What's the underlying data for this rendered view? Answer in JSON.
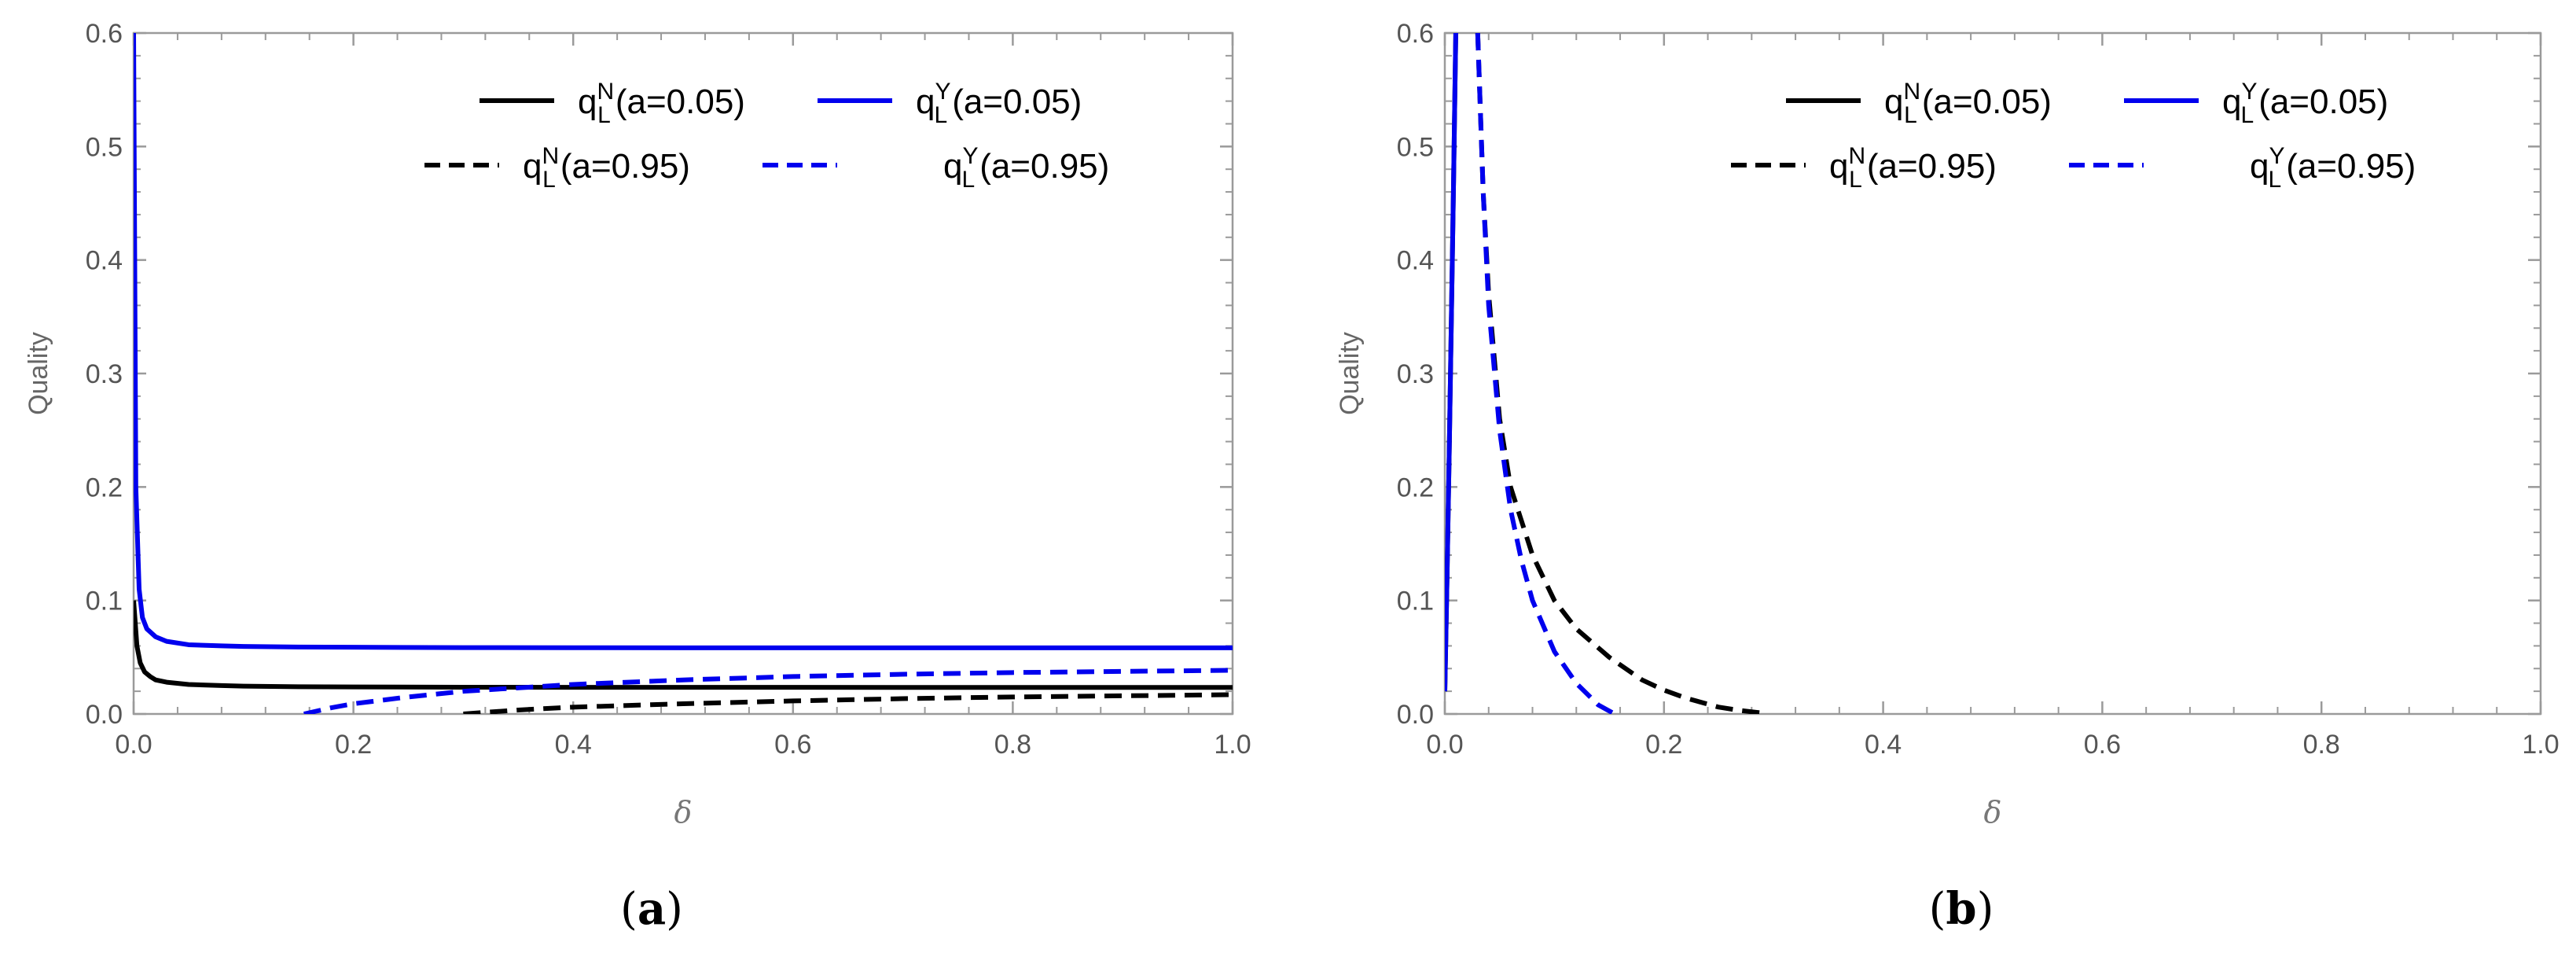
{
  "chart_data": [
    {
      "panel_label": "(a)",
      "type": "line",
      "xlabel": "δ",
      "ylabel": "Quality",
      "xlim": [
        0.0,
        1.0
      ],
      "ylim": [
        0.0,
        0.6
      ],
      "xticks": [
        "0.0",
        "0.2",
        "0.4",
        "0.6",
        "0.8",
        "1.0"
      ],
      "yticks": [
        "0.0",
        "0.1",
        "0.2",
        "0.3",
        "0.4",
        "0.5",
        "0.6"
      ],
      "legend_position": "top-right",
      "series": [
        {
          "name": "q_L^N(a=0.05)",
          "base": "q",
          "sub": "L",
          "sup": "N",
          "param": "(a=0.05)",
          "color": "#000000",
          "dash": "solid",
          "x": [
            0.0,
            0.003,
            0.006,
            0.01,
            0.015,
            0.02,
            0.03,
            0.05,
            0.08,
            0.1,
            0.15,
            0.2,
            0.3,
            0.4,
            0.5,
            0.6,
            0.7,
            0.8,
            0.9,
            1.0
          ],
          "y": [
            0.1,
            0.06,
            0.045,
            0.037,
            0.033,
            0.03,
            0.028,
            0.026,
            0.025,
            0.0245,
            0.024,
            0.0238,
            0.0236,
            0.0235,
            0.0235,
            0.0235,
            0.0234,
            0.0234,
            0.0234,
            0.0234
          ]
        },
        {
          "name": "q_L^Y(a=0.05)",
          "base": "q",
          "sub": "L",
          "sup": "Y",
          "param": "(a=0.05)",
          "color": "#0000ee",
          "dash": "solid",
          "x": [
            0.0,
            0.002,
            0.005,
            0.008,
            0.012,
            0.02,
            0.03,
            0.05,
            0.08,
            0.1,
            0.15,
            0.2,
            0.3,
            0.4,
            0.5,
            0.6,
            0.7,
            0.8,
            0.9,
            1.0
          ],
          "y": [
            0.6,
            0.2,
            0.11,
            0.085,
            0.075,
            0.068,
            0.064,
            0.061,
            0.06,
            0.0595,
            0.059,
            0.0588,
            0.0585,
            0.0584,
            0.0583,
            0.0583,
            0.0583,
            0.0583,
            0.0583,
            0.0583
          ]
        },
        {
          "name": "q_L^N(a=0.95)",
          "base": "q",
          "sub": "L",
          "sup": "N",
          "param": "(a=0.95)",
          "color": "#000000",
          "dash": "dashed",
          "x": [
            0.3,
            0.35,
            0.4,
            0.5,
            0.6,
            0.7,
            0.8,
            0.9,
            1.0
          ],
          "y": [
            0.0,
            0.0035,
            0.006,
            0.009,
            0.0115,
            0.0135,
            0.015,
            0.016,
            0.017
          ]
        },
        {
          "name": "q_L^Y(a=0.95)",
          "base": "q",
          "sub": "L",
          "sup": "Y",
          "param": "(a=0.95)",
          "color": "#0000ee",
          "dash": "dashed",
          "x": [
            0.155,
            0.18,
            0.2,
            0.25,
            0.3,
            0.4,
            0.5,
            0.6,
            0.7,
            0.8,
            0.9,
            1.0
          ],
          "y": [
            0.0,
            0.0055,
            0.009,
            0.015,
            0.02,
            0.026,
            0.03,
            0.033,
            0.035,
            0.0365,
            0.0375,
            0.0385
          ]
        }
      ]
    },
    {
      "panel_label": "(b)",
      "type": "line",
      "xlabel": "δ",
      "ylabel": "Quality",
      "xlim": [
        0.0,
        1.0
      ],
      "ylim": [
        0.0,
        0.6
      ],
      "xticks": [
        "0.0",
        "0.2",
        "0.4",
        "0.6",
        "0.8",
        "1.0"
      ],
      "yticks": [
        "0.0",
        "0.1",
        "0.2",
        "0.3",
        "0.4",
        "0.5",
        "0.6"
      ],
      "legend_position": "top-right",
      "series": [
        {
          "name": "q_L^N(a=0.05)",
          "base": "q",
          "sub": "L",
          "sup": "N",
          "param": "(a=0.05)",
          "color": "#000000",
          "dash": "solid",
          "x": [
            0.0,
            0.002,
            0.004,
            0.006,
            0.008,
            0.01
          ],
          "y": [
            0.02,
            0.12,
            0.23,
            0.35,
            0.47,
            0.6
          ]
        },
        {
          "name": "q_L^Y(a=0.05)",
          "base": "q",
          "sub": "L",
          "sup": "Y",
          "param": "(a=0.05)",
          "color": "#0000ee",
          "dash": "solid",
          "x": [
            0.0,
            0.002,
            0.004,
            0.006,
            0.008,
            0.01
          ],
          "y": [
            0.02,
            0.12,
            0.23,
            0.35,
            0.47,
            0.6
          ]
        },
        {
          "name": "q_L^N(a=0.95)",
          "base": "q",
          "sub": "L",
          "sup": "N",
          "param": "(a=0.95)",
          "color": "#000000",
          "dash": "dashed",
          "x": [
            0.03,
            0.035,
            0.04,
            0.05,
            0.06,
            0.08,
            0.1,
            0.12,
            0.15,
            0.18,
            0.2,
            0.22,
            0.25,
            0.27,
            0.29,
            0.295
          ],
          "y": [
            0.6,
            0.46,
            0.37,
            0.26,
            0.2,
            0.14,
            0.1,
            0.075,
            0.05,
            0.03,
            0.021,
            0.014,
            0.006,
            0.003,
            0.0008,
            0.0
          ]
        },
        {
          "name": "q_L^Y(a=0.95)",
          "base": "q",
          "sub": "L",
          "sup": "Y",
          "param": "(a=0.95)",
          "color": "#0000ee",
          "dash": "dashed",
          "x": [
            0.03,
            0.035,
            0.04,
            0.05,
            0.06,
            0.07,
            0.08,
            0.1,
            0.12,
            0.14,
            0.155
          ],
          "y": [
            0.6,
            0.46,
            0.36,
            0.25,
            0.18,
            0.135,
            0.1,
            0.055,
            0.027,
            0.008,
            0.0
          ]
        }
      ]
    }
  ]
}
